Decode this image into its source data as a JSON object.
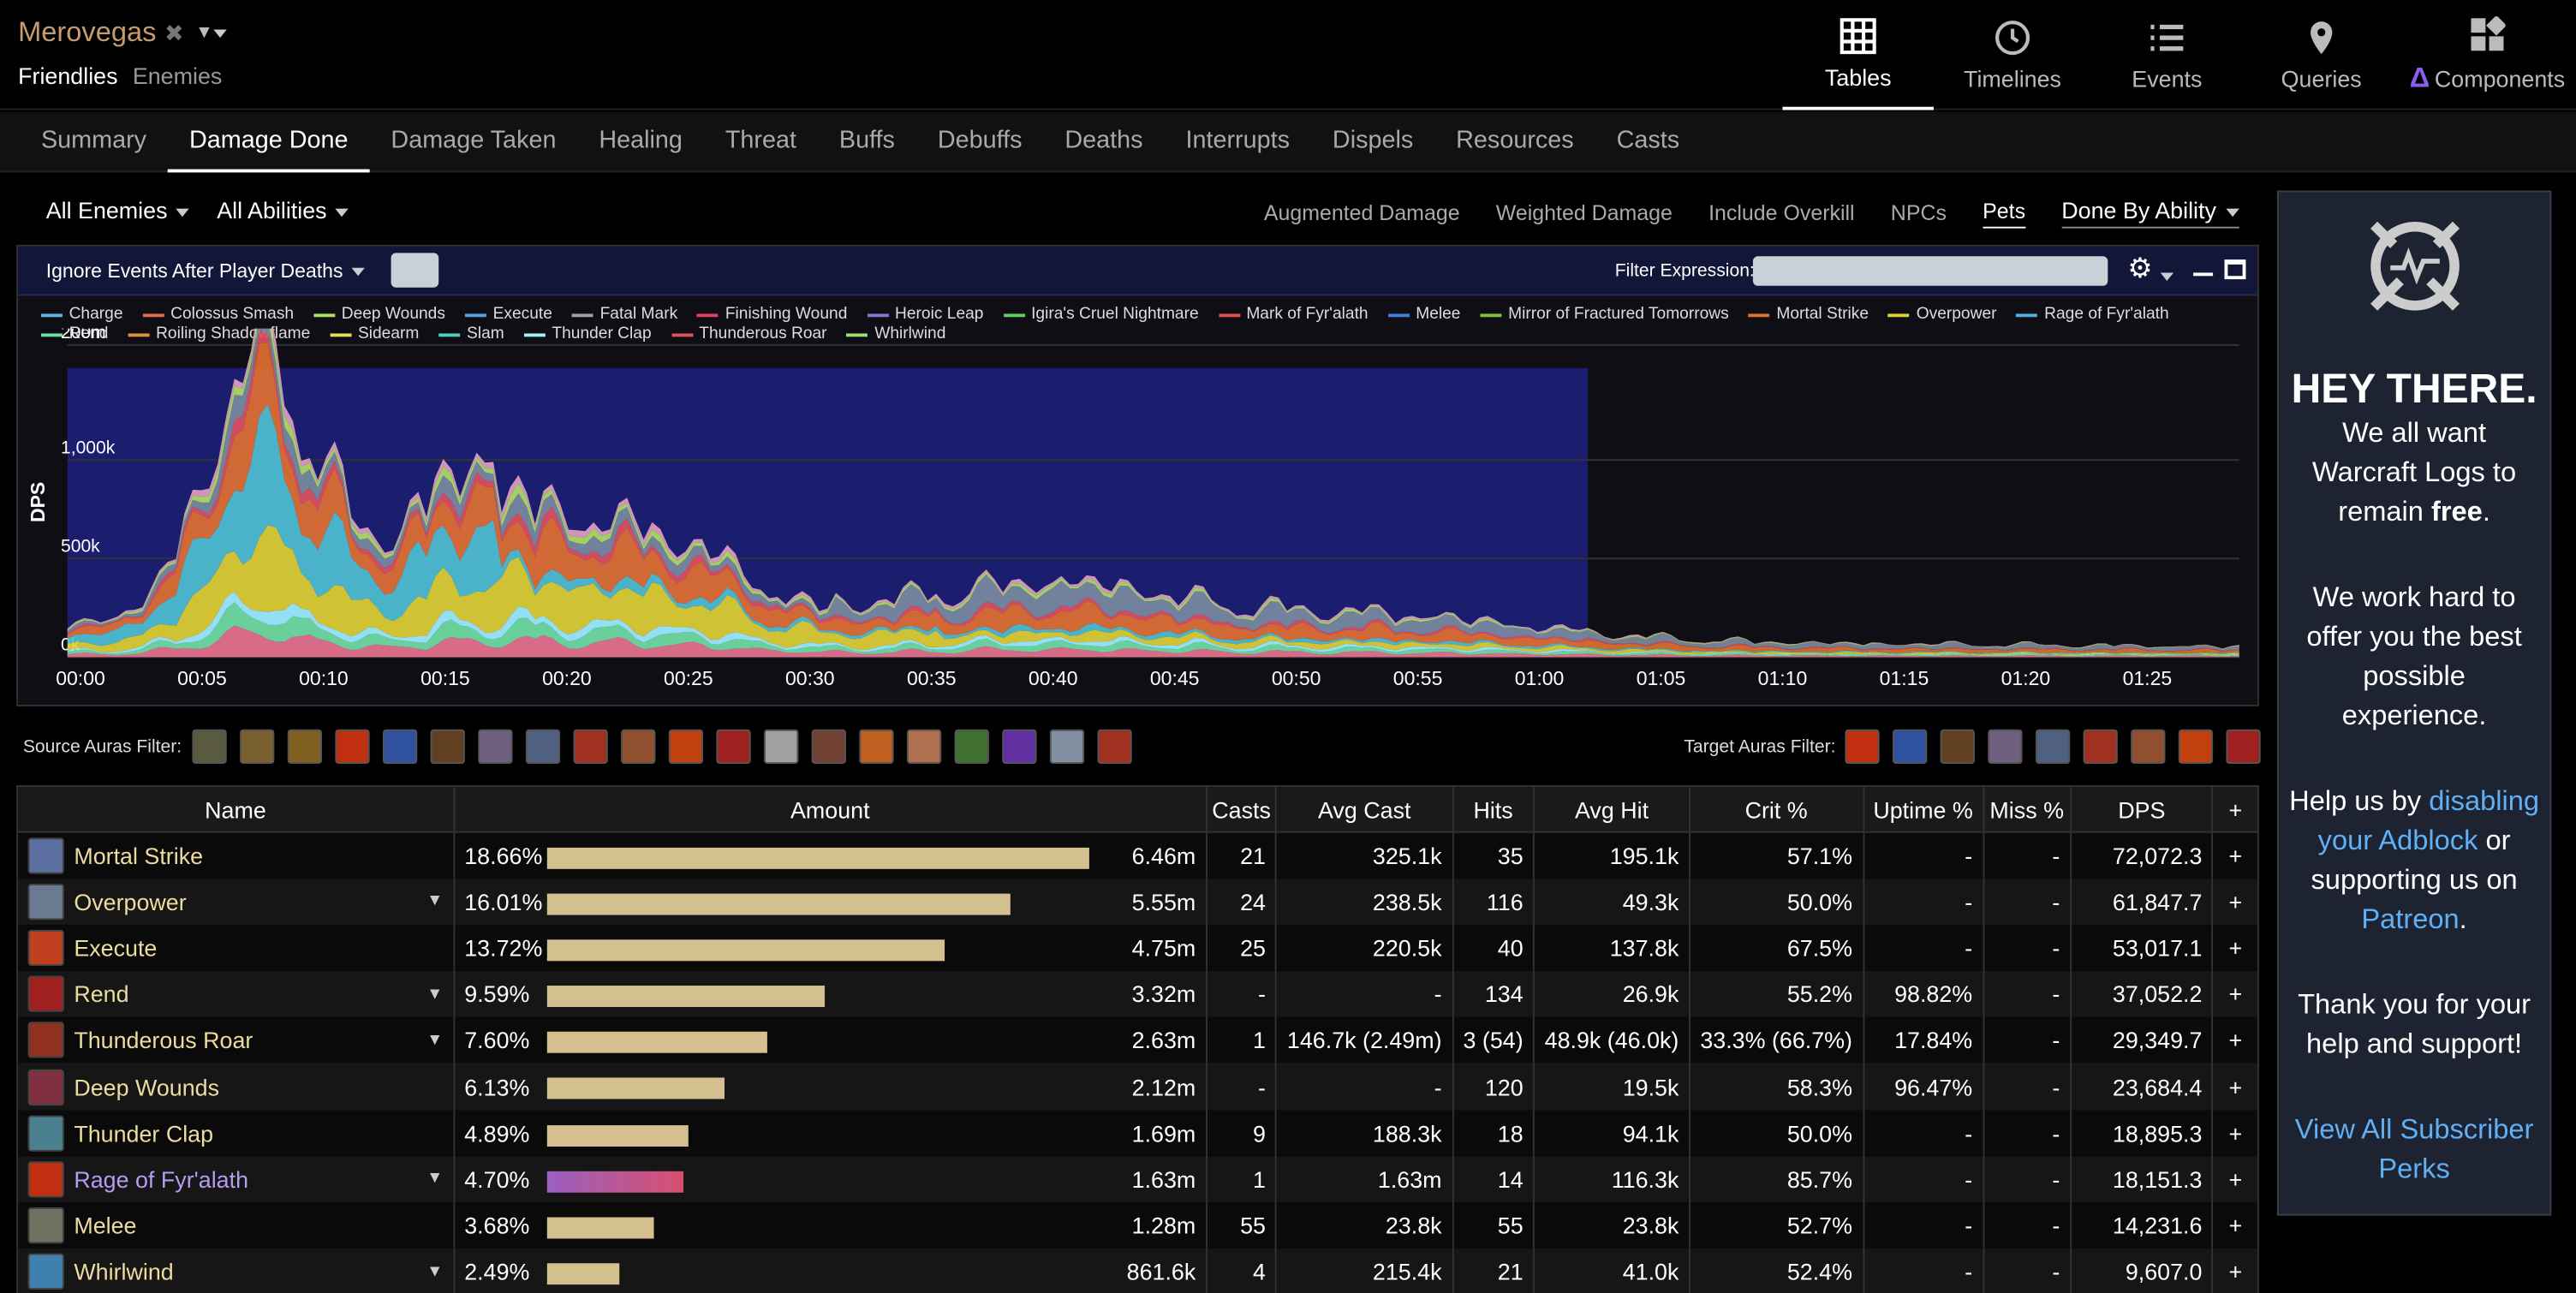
{
  "header": {
    "character": "Merovegas",
    "sub_tabs": [
      "Friendlies",
      "Enemies"
    ]
  },
  "nav": [
    {
      "label": "Tables",
      "icon": "table-icon"
    },
    {
      "label": "Timelines",
      "icon": "clock-icon"
    },
    {
      "label": "Events",
      "icon": "list-icon"
    },
    {
      "label": "Queries",
      "icon": "map-pin-icon"
    },
    {
      "label": "Components",
      "icon": "components-icon"
    }
  ],
  "tabs": [
    "Summary",
    "Damage Done",
    "Damage Taken",
    "Healing",
    "Threat",
    "Buffs",
    "Debuffs",
    "Deaths",
    "Interrupts",
    "Dispels",
    "Resources",
    "Casts"
  ],
  "filters": {
    "enemies": "All Enemies",
    "abilities": "All Abilities",
    "options": [
      "Augmented Damage",
      "Weighted Damage",
      "Include Overkill",
      "NPCs",
      "Pets"
    ],
    "done_by": "Done By Ability",
    "ignore_events": "Ignore Events After Player Deaths",
    "filter_expression_label": "Filter Expression:",
    "source_auras_label": "Source Auras Filter:",
    "target_auras_label": "Target Auras Filter:"
  },
  "chart_data": {
    "type": "area",
    "ylabel": "DPS",
    "y_ticks": [
      "0k",
      "500k",
      "1,000k",
      "200m"
    ],
    "x_ticks": [
      "00:00",
      "00:05",
      "00:10",
      "00:15",
      "00:20",
      "00:25",
      "00:30",
      "00:35",
      "00:40",
      "00:45",
      "00:50",
      "00:55",
      "01:00",
      "01:05",
      "01:10",
      "01:15",
      "01:20",
      "01:25"
    ],
    "series": [
      {
        "name": "Charge",
        "color": "#5ab8e0"
      },
      {
        "name": "Colossus Smash",
        "color": "#e06a50"
      },
      {
        "name": "Deep Wounds",
        "color": "#b0e060"
      },
      {
        "name": "Execute",
        "color": "#5aa0e0"
      },
      {
        "name": "Fatal Mark",
        "color": "#a0a0a0"
      },
      {
        "name": "Finishing Wound",
        "color": "#e04060"
      },
      {
        "name": "Heroic Leap",
        "color": "#9070d0"
      },
      {
        "name": "Igira's Cruel Nightmare",
        "color": "#60d060"
      },
      {
        "name": "Mark of Fyr'alath",
        "color": "#e05050"
      },
      {
        "name": "Melee",
        "color": "#4080e0"
      },
      {
        "name": "Mirror of Fractured Tomorrows",
        "color": "#80c040"
      },
      {
        "name": "Mortal Strike",
        "color": "#e07030"
      },
      {
        "name": "Overpower",
        "color": "#e0d030"
      },
      {
        "name": "Rage of Fyr'alath",
        "color": "#50b0e0"
      },
      {
        "name": "Rend",
        "color": "#70e0a0"
      },
      {
        "name": "Roiling Shadowflame",
        "color": "#e09040"
      },
      {
        "name": "Sidearm",
        "color": "#e0e050"
      },
      {
        "name": "Slam",
        "color": "#50d0c0"
      },
      {
        "name": "Thunder Clap",
        "color": "#a0f0ff"
      },
      {
        "name": "Thunderous Roar",
        "color": "#e05060"
      },
      {
        "name": "Whirlwind",
        "color": "#a0e070"
      }
    ]
  },
  "table": {
    "headers": [
      "Name",
      "Amount",
      "Casts",
      "Avg Cast",
      "Hits",
      "Avg Hit",
      "Crit %",
      "Uptime %",
      "Miss %",
      "DPS",
      "+"
    ],
    "rows": [
      {
        "name": "Mortal Strike",
        "pct": "18.66%",
        "bar": 1.0,
        "amount": "6.46m",
        "casts": "21",
        "avg_cast": "325.1k",
        "hits": "35",
        "avg_hit": "195.1k",
        "crit": "57.1%",
        "uptime": "-",
        "miss": "-",
        "dps": "72,072.3",
        "icon": "#5a6fa0",
        "expand": false
      },
      {
        "name": "Overpower",
        "pct": "16.01%",
        "bar": 0.857,
        "amount": "5.55m",
        "casts": "24",
        "avg_cast": "238.5k",
        "hits": "116",
        "avg_hit": "49.3k",
        "crit": "50.0%",
        "uptime": "-",
        "miss": "-",
        "dps": "61,847.7",
        "icon": "#6a7a90",
        "expand": true
      },
      {
        "name": "Execute",
        "pct": "13.72%",
        "bar": 0.735,
        "amount": "4.75m",
        "casts": "25",
        "avg_cast": "220.5k",
        "hits": "40",
        "avg_hit": "137.8k",
        "crit": "67.5%",
        "uptime": "-",
        "miss": "-",
        "dps": "53,017.1",
        "icon": "#c04020",
        "expand": false
      },
      {
        "name": "Rend",
        "pct": "9.59%",
        "bar": 0.514,
        "amount": "3.32m",
        "casts": "-",
        "avg_cast": "-",
        "hits": "134",
        "avg_hit": "26.9k",
        "crit": "55.2%",
        "uptime": "98.82%",
        "miss": "-",
        "dps": "37,052.2",
        "icon": "#a02020",
        "expand": true
      },
      {
        "name": "Thunderous Roar",
        "pct": "7.60%",
        "bar": 0.407,
        "amount": "2.63m",
        "casts": "1",
        "avg_cast": "146.7k (2.49m)",
        "hits": "3 (54)",
        "avg_hit": "48.9k (46.0k)",
        "crit": "33.3% (66.7%)",
        "uptime": "17.84%",
        "miss": "-",
        "dps": "29,349.7",
        "icon": "#903020",
        "expand": true
      },
      {
        "name": "Deep Wounds",
        "pct": "6.13%",
        "bar": 0.328,
        "amount": "2.12m",
        "casts": "-",
        "avg_cast": "-",
        "hits": "120",
        "avg_hit": "19.5k",
        "crit": "58.3%",
        "uptime": "96.47%",
        "miss": "-",
        "dps": "23,684.4",
        "icon": "#803040",
        "expand": false
      },
      {
        "name": "Thunder Clap",
        "pct": "4.89%",
        "bar": 0.262,
        "amount": "1.69m",
        "casts": "9",
        "avg_cast": "188.3k",
        "hits": "18",
        "avg_hit": "94.1k",
        "crit": "50.0%",
        "uptime": "-",
        "miss": "-",
        "dps": "18,895.3",
        "icon": "#4a8090",
        "expand": false
      },
      {
        "name": "Rage of Fyr'alath",
        "pct": "4.70%",
        "bar": 0.252,
        "amount": "1.63m",
        "casts": "1",
        "avg_cast": "1.63m",
        "hits": "14",
        "avg_hit": "116.3k",
        "crit": "85.7%",
        "uptime": "-",
        "miss": "-",
        "dps": "18,151.3",
        "icon": "#c03010",
        "expand": true,
        "legendary": true
      },
      {
        "name": "Melee",
        "pct": "3.68%",
        "bar": 0.197,
        "amount": "1.28m",
        "casts": "55",
        "avg_cast": "23.8k",
        "hits": "55",
        "avg_hit": "23.8k",
        "crit": "52.7%",
        "uptime": "-",
        "miss": "-",
        "dps": "14,231.6",
        "icon": "#707060",
        "expand": false
      },
      {
        "name": "Whirlwind",
        "pct": "2.49%",
        "bar": 0.133,
        "amount": "861.6k",
        "casts": "4",
        "avg_cast": "215.4k",
        "hits": "21",
        "avg_hit": "41.0k",
        "crit": "52.4%",
        "uptime": "-",
        "miss": "-",
        "dps": "9,607.0",
        "icon": "#4080b0",
        "expand": true
      }
    ]
  },
  "ad": {
    "title": "HEY THERE.",
    "p1a": "We all want Warcraft Logs to remain ",
    "p1b": "free",
    "p1c": ".",
    "p2": "We work hard to offer you the best possible experience.",
    "p3a": "Help us by ",
    "p3link1": "disabling your Adblock",
    "p3b": " or supporting us on ",
    "p3link2": "Patreon",
    "p3c": ".",
    "p4": "Thank you for your help and support!",
    "perks": "View All Subscriber Perks"
  },
  "colors": {
    "accent": "#c69b6d",
    "name_text": "#ecdc9e",
    "legendary": "#b59cf0",
    "dps": "#e6dc80",
    "bar": "#d4c08f",
    "link": "#5fb0f5"
  }
}
